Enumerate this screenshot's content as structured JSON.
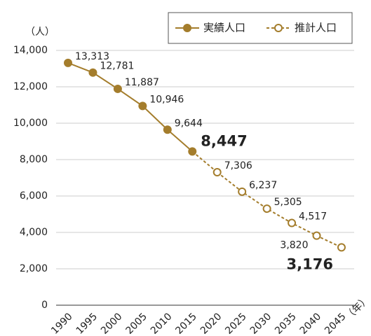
{
  "chart_data": {
    "type": "line",
    "y_unit": "（人）",
    "x_unit": "（年）",
    "categories": [
      "1990",
      "1995",
      "2000",
      "2005",
      "2010",
      "2015",
      "2020",
      "2025",
      "2030",
      "2035",
      "2040",
      "2045"
    ],
    "series": [
      {
        "name": "実績人口",
        "color": "#a47d2c",
        "dashed": false,
        "values": [
          13313,
          12781,
          11887,
          10946,
          9644,
          8447,
          null,
          null,
          null,
          null,
          null,
          null
        ],
        "value_labels": [
          "13,313",
          "12,781",
          "11,887",
          "10,946",
          "9,644",
          "8,447",
          null,
          null,
          null,
          null,
          null,
          null
        ]
      },
      {
        "name": "推計人口",
        "color": "#a47d2c",
        "dashed": true,
        "values": [
          null,
          null,
          null,
          null,
          null,
          null,
          7306,
          6237,
          5305,
          4517,
          3820,
          3176
        ],
        "value_labels": [
          null,
          null,
          null,
          null,
          null,
          null,
          "7,306",
          "6,237",
          "5,305",
          "4,517",
          "3,820",
          "3,176"
        ]
      }
    ],
    "ylim": [
      0,
      14000
    ],
    "yticks": [
      0,
      {
        "value": 2000,
        "label": "2,000"
      },
      {
        "value": 4000,
        "label": "4,000"
      },
      {
        "value": 6000,
        "label": "6,000"
      },
      {
        "value": 8000,
        "label": "8,000"
      },
      {
        "value": 10000,
        "label": "10,000"
      },
      {
        "value": 12000,
        "label": "12,000"
      },
      {
        "value": 14000,
        "label": "14,000"
      }
    ],
    "grid": true,
    "legend": "top-right"
  }
}
